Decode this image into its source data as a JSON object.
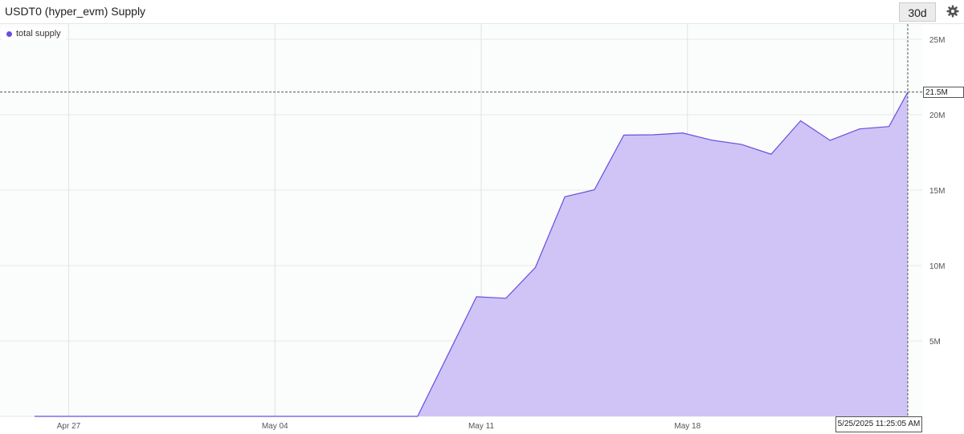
{
  "header": {
    "title": "USDT0 (hyper_evm) Supply",
    "range_label": "30d",
    "settings_icon": "gear-icon"
  },
  "legend": {
    "label": "total supply",
    "color": "#6a4ee0"
  },
  "crosshair": {
    "value_label": "21.5M",
    "time_label": "5/25/2025 11:25:05 AM"
  },
  "chart_data": {
    "type": "area",
    "title": "USDT0 (hyper_evm) Supply",
    "series": [
      {
        "name": "total supply",
        "color": "#6a4ee0",
        "fill": "#cfc4f5",
        "x": [
          "2025-04-25",
          "2025-04-26",
          "2025-04-27",
          "2025-04-28",
          "2025-04-29",
          "2025-04-30",
          "2025-05-01",
          "2025-05-02",
          "2025-05-03",
          "2025-05-04",
          "2025-05-05",
          "2025-05-06",
          "2025-05-07",
          "2025-05-08",
          "2025-05-09",
          "2025-05-10",
          "2025-05-11",
          "2025-05-12",
          "2025-05-13",
          "2025-05-14",
          "2025-05-15",
          "2025-05-16",
          "2025-05-17",
          "2025-05-18",
          "2025-05-19",
          "2025-05-20",
          "2025-05-21",
          "2025-05-22",
          "2025-05-23",
          "2025-05-24",
          "2025-05-25 11:25"
        ],
        "values": [
          0,
          0,
          0,
          0,
          0,
          0,
          0,
          0,
          0,
          0,
          0,
          0,
          0,
          0,
          3.96,
          7.93,
          7.83,
          9.88,
          14.56,
          15.02,
          18.65,
          18.67,
          18.79,
          18.31,
          18.03,
          17.38,
          19.6,
          18.3,
          19.06,
          19.22,
          21.5
        ]
      }
    ],
    "y_unit": "M",
    "ylim": [
      0,
      26
    ],
    "y_ticks": [
      "5M",
      "10M",
      "15M",
      "20M",
      "25M"
    ],
    "x_ticks": [
      "Apr 27",
      "May 04",
      "May 11",
      "May 18"
    ],
    "grid": true,
    "legend_position": "top-left",
    "y_axis_side": "right"
  }
}
